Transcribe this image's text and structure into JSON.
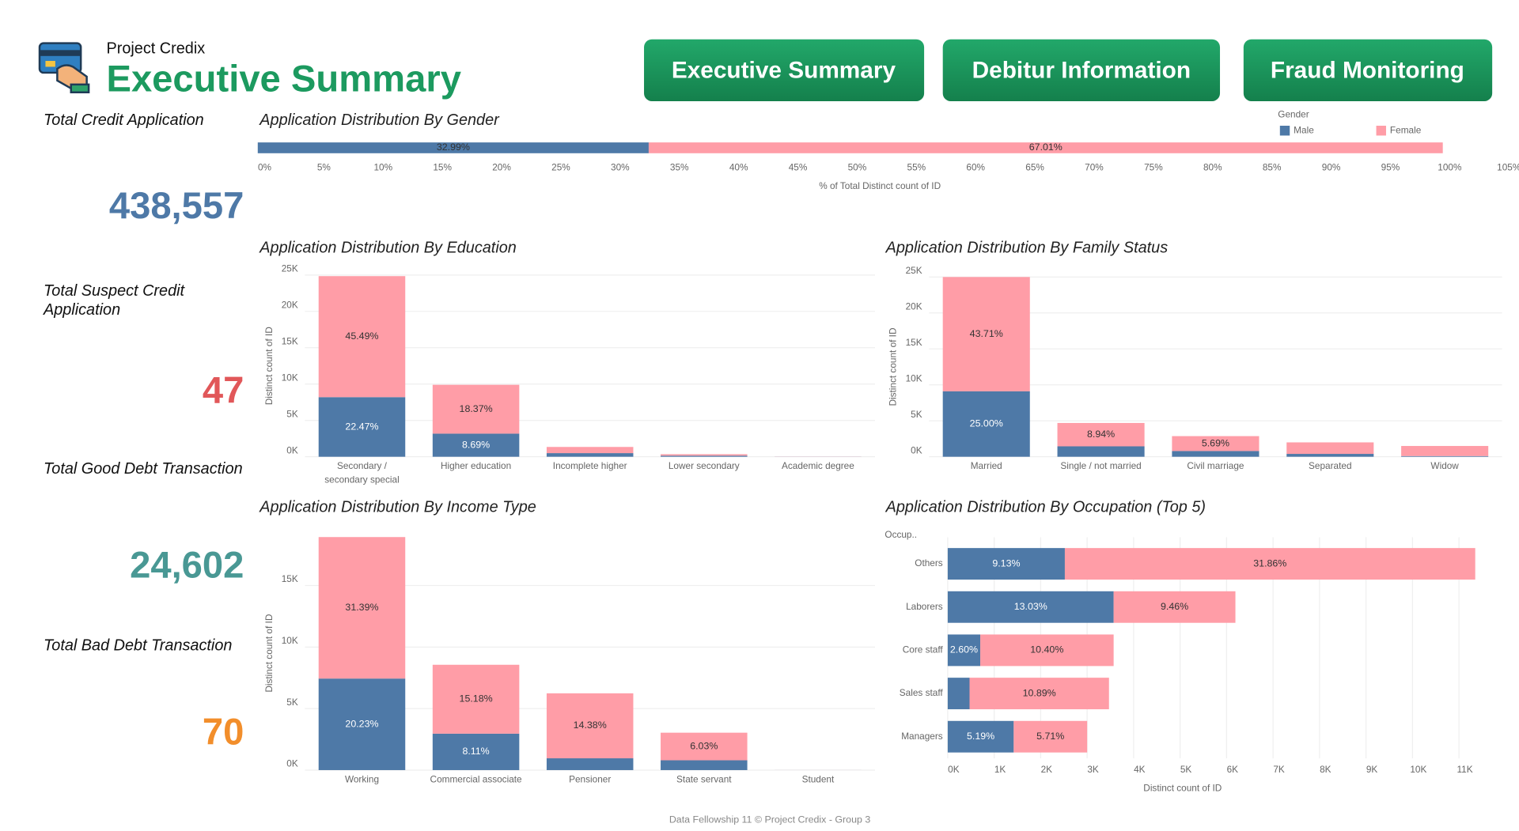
{
  "header": {
    "project": "Project Credix",
    "title": "Executive Summary"
  },
  "nav": [
    "Executive Summary",
    "Debitur Information",
    "Fraud Monitoring"
  ],
  "kpis": [
    {
      "label": "Total Credit Application",
      "value": "438,557",
      "color": "#4e79a7"
    },
    {
      "label": "Total Suspect Credit Application",
      "value": "47",
      "color": "#e15759"
    },
    {
      "label": "Total Good Debt Transaction",
      "value": "24,602",
      "color": "#499894"
    },
    {
      "label": "Total Bad Debt Transaction",
      "value": "70",
      "color": "#f28e2b"
    }
  ],
  "footer": "Data Fellowship 11 © Project Credix - Group 3",
  "chart_data": [
    {
      "type": "bar",
      "orientation": "horizontal",
      "stacked": true,
      "title": "Application Distribution By Gender",
      "xlabel": "% of Total Distinct count of ID",
      "legend_title": "Gender",
      "legend": "top-right",
      "series": [
        {
          "name": "Male",
          "color": "#4e79a7",
          "values": [
            32.99
          ],
          "value_labels": [
            "32.99%"
          ]
        },
        {
          "name": "Female",
          "color": "#ff9da7",
          "values": [
            67.01
          ],
          "value_labels": [
            "67.01%"
          ]
        }
      ],
      "xlim": [
        0,
        105
      ],
      "xticks": [
        {
          "value": 0,
          "label": "0%"
        },
        {
          "value": 5,
          "label": "5%"
        },
        {
          "value": 10,
          "label": "10%"
        },
        {
          "value": 15,
          "label": "15%"
        },
        {
          "value": 20,
          "label": "20%"
        },
        {
          "value": 25,
          "label": "25%"
        },
        {
          "value": 30,
          "label": "30%"
        },
        {
          "value": 35,
          "label": "35%"
        },
        {
          "value": 40,
          "label": "40%"
        },
        {
          "value": 45,
          "label": "45%"
        },
        {
          "value": 50,
          "label": "50%"
        },
        {
          "value": 55,
          "label": "55%"
        },
        {
          "value": 60,
          "label": "60%"
        },
        {
          "value": 65,
          "label": "65%"
        },
        {
          "value": 70,
          "label": "70%"
        },
        {
          "value": 75,
          "label": "75%"
        },
        {
          "value": 80,
          "label": "80%"
        },
        {
          "value": 85,
          "label": "85%"
        },
        {
          "value": 90,
          "label": "90%"
        },
        {
          "value": 95,
          "label": "95%"
        },
        {
          "value": 100,
          "label": "100%"
        },
        {
          "value": 105,
          "label": "105%"
        }
      ],
      "grid": false
    },
    {
      "type": "bar",
      "orientation": "vertical",
      "stacked": true,
      "title": "Application Distribution By Education",
      "ylabel": "Distinct count of ID",
      "categories": [
        "Secondary / secondary special",
        "Higher education",
        "Incomplete higher",
        "Lower secondary",
        "Academic degree"
      ],
      "series": [
        {
          "name": "Male",
          "color": "#4e79a7",
          "values": [
            8200,
            3180,
            500,
            150,
            10
          ],
          "percent_labels": [
            "22.47%",
            "8.69%",
            null,
            null,
            null
          ]
        },
        {
          "name": "Female",
          "color": "#ff9da7",
          "values": [
            16650,
            6720,
            850,
            200,
            15
          ],
          "percent_labels": [
            "45.49%",
            "18.37%",
            null,
            null,
            null
          ]
        }
      ],
      "ylim": [
        0,
        25000
      ],
      "yticks": [
        {
          "value": 0,
          "label": "0K"
        },
        {
          "value": 5000,
          "label": "5K"
        },
        {
          "value": 10000,
          "label": "10K"
        },
        {
          "value": 15000,
          "label": "15K"
        },
        {
          "value": 20000,
          "label": "20K"
        },
        {
          "value": 25000,
          "label": "25K"
        }
      ],
      "grid": true
    },
    {
      "type": "bar",
      "orientation": "vertical",
      "stacked": true,
      "title": "Application Distribution By Family Status",
      "ylabel": "Distinct count of ID",
      "categories": [
        "Married",
        "Single / not married",
        "Civil marriage",
        "Separated",
        "Widow"
      ],
      "series": [
        {
          "name": "Male",
          "color": "#4e79a7",
          "values": [
            9100,
            1450,
            800,
            400,
            100
          ],
          "percent_labels": [
            "25.00%",
            null,
            null,
            null,
            null
          ]
        },
        {
          "name": "Female",
          "color": "#ff9da7",
          "values": [
            15900,
            3250,
            2070,
            1600,
            1400
          ],
          "percent_labels": [
            "43.71%",
            "8.94%",
            "5.69%",
            null,
            null
          ]
        }
      ],
      "ylim": [
        0,
        25000
      ],
      "yticks": [
        {
          "value": 0,
          "label": "0K"
        },
        {
          "value": 5000,
          "label": "5K"
        },
        {
          "value": 10000,
          "label": "10K"
        },
        {
          "value": 15000,
          "label": "15K"
        },
        {
          "value": 20000,
          "label": "20K"
        },
        {
          "value": 25000,
          "label": "25K"
        }
      ],
      "grid": true
    },
    {
      "type": "bar",
      "orientation": "vertical",
      "stacked": true,
      "title": "Application Distribution By Income Type",
      "ylabel": "Distinct count of ID",
      "categories": [
        "Working",
        "Commercial associate",
        "Pensioner",
        "State servant",
        "Student"
      ],
      "series": [
        {
          "name": "Male",
          "color": "#4e79a7",
          "values": [
            7440,
            2960,
            960,
            800,
            2
          ],
          "percent_labels": [
            "20.23%",
            "8.11%",
            null,
            null,
            null
          ]
        },
        {
          "name": "Female",
          "color": "#ff9da7",
          "values": [
            11500,
            5600,
            5280,
            2240,
            3
          ],
          "percent_labels": [
            "31.39%",
            "15.18%",
            "14.38%",
            "6.03%",
            null
          ]
        }
      ],
      "ylim": [
        0,
        19000
      ],
      "yticks": [
        {
          "value": 0,
          "label": "0K"
        },
        {
          "value": 5000,
          "label": "5K"
        },
        {
          "value": 10000,
          "label": "10K"
        },
        {
          "value": 15000,
          "label": "15K"
        }
      ],
      "grid": true
    },
    {
      "type": "bar",
      "orientation": "horizontal",
      "stacked": true,
      "title": "Application Distribution By Occupation (Top 5)",
      "xlabel": "Distinct count of ID",
      "ylabel": "Occup..",
      "categories": [
        "Others",
        "Laborers",
        "Core staff",
        "Sales staff",
        "Managers"
      ],
      "series": [
        {
          "name": "Male",
          "color": "#4e79a7",
          "values": [
            2520,
            3570,
            700,
            470,
            1420
          ],
          "percent_labels": [
            "9.13%",
            "13.03%",
            "2.60%",
            null,
            "5.19%"
          ]
        },
        {
          "name": "Female",
          "color": "#ff9da7",
          "values": [
            8830,
            2620,
            2870,
            3000,
            1580
          ],
          "percent_labels": [
            "31.86%",
            "9.46%",
            "10.40%",
            "10.89%",
            "5.71%"
          ]
        }
      ],
      "xlim": [
        0,
        11800
      ],
      "xticks": [
        {
          "value": 0,
          "label": "0K"
        },
        {
          "value": 1000,
          "label": "1K"
        },
        {
          "value": 2000,
          "label": "2K"
        },
        {
          "value": 3000,
          "label": "3K"
        },
        {
          "value": 4000,
          "label": "4K"
        },
        {
          "value": 5000,
          "label": "5K"
        },
        {
          "value": 6000,
          "label": "6K"
        },
        {
          "value": 7000,
          "label": "7K"
        },
        {
          "value": 8000,
          "label": "8K"
        },
        {
          "value": 9000,
          "label": "9K"
        },
        {
          "value": 10000,
          "label": "10K"
        },
        {
          "value": 11000,
          "label": "11K"
        }
      ],
      "grid": true
    }
  ]
}
